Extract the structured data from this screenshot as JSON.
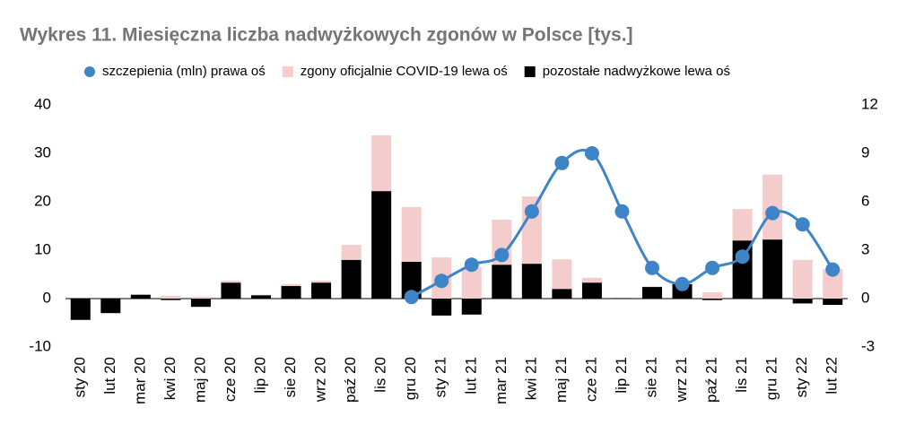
{
  "chart_data": {
    "type": "bar",
    "title": "Wykres 11. Miesięczna liczba nadwyżkowych zgonów w Polsce [tys.]",
    "categories": [
      "sty 20",
      "lut 20",
      "mar 20",
      "kwi 20",
      "maj 20",
      "cze 20",
      "lip 20",
      "sie 20",
      "wrz 20",
      "paź 20",
      "lis 20",
      "gru 20",
      "sty 21",
      "lut 21",
      "mar 21",
      "kwi 21",
      "maj 21",
      "cze 21",
      "lip 21",
      "sie 21",
      "wrz 21",
      "paź 21",
      "lis 21",
      "gru 21",
      "sty 22",
      "lut 22"
    ],
    "series": [
      {
        "name": "szczepienia (mln) prawa oś",
        "color": "#3d85c6",
        "type": "line",
        "axis": "y2",
        "values": [
          null,
          null,
          null,
          null,
          null,
          null,
          null,
          null,
          null,
          null,
          null,
          0.1,
          1.1,
          2.1,
          2.7,
          5.4,
          8.4,
          9.0,
          5.4,
          1.9,
          0.9,
          1.9,
          2.6,
          5.3,
          4.6,
          1.8
        ]
      },
      {
        "name": "zgony oficjalnie COVID-19 lewa oś",
        "color": "#f4cccc",
        "type": "bar",
        "values": [
          0,
          0,
          0,
          0.6,
          0.4,
          0.4,
          0.1,
          0.4,
          0.4,
          3.1,
          11.5,
          11.3,
          8.5,
          6.5,
          9.3,
          13.9,
          6.1,
          1.0,
          0.1,
          0.1,
          0.2,
          1.3,
          6.5,
          13.4,
          8.0,
          6.1
        ]
      },
      {
        "name": "pozostałe nadwyżkowe lewa oś",
        "color": "#000000",
        "type": "bar",
        "values": [
          -4.4,
          -3.0,
          0.8,
          -0.3,
          -1.7,
          3.3,
          0.7,
          2.6,
          3.3,
          8.0,
          22.2,
          7.6,
          -3.5,
          -3.3,
          7.0,
          7.2,
          2.0,
          3.3,
          0.1,
          2.4,
          3.0,
          -0.3,
          12.0,
          12.2,
          -1.0,
          -1.3
        ]
      }
    ],
    "ylim": [
      -10,
      40
    ],
    "yticks": [
      -10,
      0,
      10,
      20,
      30,
      40
    ],
    "y2lim": [
      -3,
      12
    ],
    "y2ticks": [
      -3,
      0,
      3,
      6,
      9,
      12
    ],
    "legend": "top"
  }
}
